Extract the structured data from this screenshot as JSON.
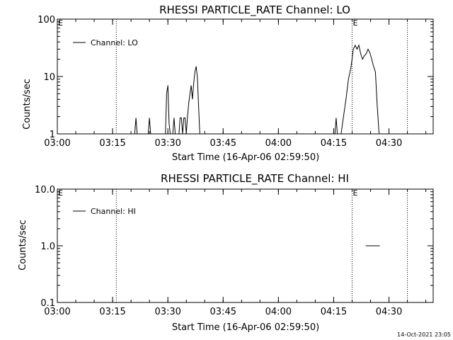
{
  "footer": {
    "timestamp": "14-Oct-2021 23:05"
  },
  "colors": {
    "background": "#ffffff",
    "foreground": "#000000"
  },
  "chart_data": [
    {
      "type": "line",
      "title": "RHESSI PARTICLE_RATE Channel: LO",
      "xlabel": "Start Time (16-Apr-06 02:59:50)",
      "ylabel": "Counts/sec",
      "yscale": "log",
      "xlim": [
        "03:00",
        "04:42"
      ],
      "ylim": [
        1,
        100
      ],
      "x_ticks": [
        "03:00",
        "03:15",
        "03:30",
        "03:45",
        "04:00",
        "04:15",
        "04:30"
      ],
      "y_ticks": [
        "1",
        "10",
        "100"
      ],
      "legend": {
        "position": "top-left",
        "entries": [
          "Channel: LO"
        ]
      },
      "markers": [
        {
          "time": "03:00",
          "label": "E"
        },
        {
          "time": "03:16",
          "label": ""
        },
        {
          "time": "04:20",
          "label": "E"
        },
        {
          "time": "04:35",
          "label": ""
        }
      ],
      "series": [
        {
          "name": "Channel: LO",
          "points": [
            [
              "03:21:00",
              1
            ],
            [
              "03:21:20",
              1.9
            ],
            [
              "03:21:40",
              1
            ],
            [
              "03:24:40",
              1
            ],
            [
              "03:25:00",
              1.9
            ],
            [
              "03:25:20",
              1
            ],
            [
              "03:29:20",
              1
            ],
            [
              "03:29:40",
              5.0
            ],
            [
              "03:30:00",
              7.0
            ],
            [
              "03:30:20",
              1.5
            ],
            [
              "03:30:40",
              1
            ],
            [
              "03:31:20",
              1
            ],
            [
              "03:31:40",
              1.9
            ],
            [
              "03:32:00",
              1
            ],
            [
              "03:33:00",
              1
            ],
            [
              "03:33:20",
              1.9
            ],
            [
              "03:33:40",
              1.9
            ],
            [
              "03:34:00",
              1
            ],
            [
              "03:34:20",
              1.9
            ],
            [
              "03:34:40",
              1.9
            ],
            [
              "03:35:00",
              1
            ],
            [
              "03:35:20",
              2.0
            ],
            [
              "03:35:40",
              3.5
            ],
            [
              "03:36:00",
              5.0
            ],
            [
              "03:36:20",
              7.0
            ],
            [
              "03:36:40",
              4.0
            ],
            [
              "03:37:00",
              7.5
            ],
            [
              "03:37:20",
              12.0
            ],
            [
              "03:37:40",
              15.0
            ],
            [
              "03:38:00",
              10.0
            ],
            [
              "03:38:20",
              3.0
            ],
            [
              "03:38:40",
              1
            ],
            [
              "04:15:20",
              1
            ],
            [
              "04:15:40",
              1.9
            ],
            [
              "04:16:00",
              1
            ],
            [
              "04:17:00",
              1
            ],
            [
              "04:17:40",
              2.0
            ],
            [
              "04:18:20",
              4.0
            ],
            [
              "04:19:00",
              9.0
            ],
            [
              "04:19:40",
              14.0
            ],
            [
              "04:20:20",
              30.0
            ],
            [
              "04:20:50",
              35.0
            ],
            [
              "04:21:20",
              30.0
            ],
            [
              "04:21:50",
              35.0
            ],
            [
              "04:22:20",
              25.0
            ],
            [
              "04:22:50",
              20.0
            ],
            [
              "04:23:20",
              23.0
            ],
            [
              "04:23:50",
              25.0
            ],
            [
              "04:24:20",
              30.0
            ],
            [
              "04:24:50",
              26.0
            ],
            [
              "04:25:20",
              20.0
            ],
            [
              "04:25:50",
              15.0
            ],
            [
              "04:26:20",
              12.0
            ],
            [
              "04:26:50",
              3.0
            ],
            [
              "04:27:20",
              1
            ]
          ]
        }
      ]
    },
    {
      "type": "line",
      "title": "RHESSI PARTICLE_RATE Channel: HI",
      "xlabel": "Start Time (16-Apr-06 02:59:50)",
      "ylabel": "Counts/sec",
      "yscale": "log",
      "xlim": [
        "03:00",
        "04:42"
      ],
      "ylim": [
        0.1,
        10
      ],
      "x_ticks": [
        "03:00",
        "03:15",
        "03:30",
        "03:45",
        "04:00",
        "04:15",
        "04:30"
      ],
      "y_ticks": [
        "0.1",
        "1.0",
        "10.0"
      ],
      "legend": {
        "position": "top-left",
        "entries": [
          "Channel: HI"
        ]
      },
      "markers": [
        {
          "time": "03:00",
          "label": "E"
        },
        {
          "time": "03:16",
          "label": ""
        },
        {
          "time": "04:20",
          "label": "E"
        },
        {
          "time": "04:35",
          "label": ""
        }
      ],
      "series": [
        {
          "name": "Channel: HI",
          "points": [
            [
              "04:23:40",
              1.0
            ],
            [
              "04:27:30",
              1.0
            ]
          ]
        }
      ]
    }
  ]
}
